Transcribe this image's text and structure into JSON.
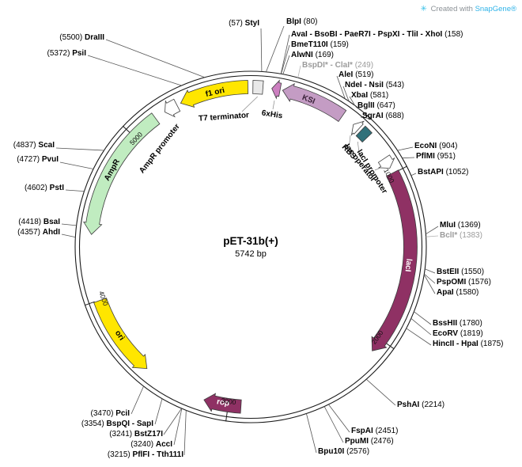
{
  "watermark": {
    "icon": "✳",
    "prefix": "Created with",
    "brand": "SnapGene®"
  },
  "plasmid": {
    "name": "pET-31b(+)",
    "size": "5742 bp"
  },
  "ticks": [
    "1000",
    "2000",
    "3000",
    "4000",
    "5000"
  ],
  "colors": {
    "backbone": "#1a1a1a",
    "leader": "#555555",
    "muted_site": "#9b9b9b",
    "watermark_brand": "#2fb3e8"
  },
  "features": {
    "f1_ori": {
      "label": "f1 ori",
      "color": "#ffe600"
    },
    "t7_terminator": {
      "label": "T7 terminator",
      "color": "#e9e9e9"
    },
    "his6": {
      "label": "6xHis",
      "color": "#cc7fc0"
    },
    "ksi": {
      "label": "KSI",
      "color": "#c49cc4"
    },
    "rbs": {
      "label": "RBS",
      "color": "#ffffff"
    },
    "lac_operator": {
      "label": "lac operator",
      "color": "#31717a"
    },
    "laci_promoter": {
      "label": "lacI promoter",
      "color": "#ffffff"
    },
    "laci": {
      "label": "lacI",
      "color": "#8f3164"
    },
    "rop": {
      "label": "rop",
      "color": "#8f3164"
    },
    "ori": {
      "label": "ori",
      "color": "#ffe600"
    },
    "ampr": {
      "label": "AmpR",
      "color": "#c0ecc0"
    },
    "ampr_promoter": {
      "label": "AmpR promoter",
      "color": "#ffffff"
    }
  },
  "sites": [
    {
      "name": "StyI",
      "pos": "(57)"
    },
    {
      "name": "BlpI",
      "pos": "(80)"
    },
    {
      "name": "AvaI - BsoBI - PaeR7I - PspXI - TliI - XhoI",
      "pos": "(158)"
    },
    {
      "name": "BmeT110I",
      "pos": "(159)"
    },
    {
      "name": "AlwNI",
      "pos": "(169)"
    },
    {
      "name": "BspDI* - ClaI*",
      "pos": "(249)",
      "muted": true
    },
    {
      "name": "AleI",
      "pos": "(519)"
    },
    {
      "name": "NdeI - NsiI",
      "pos": "(543)"
    },
    {
      "name": "XbaI",
      "pos": "(581)"
    },
    {
      "name": "BglII",
      "pos": "(647)"
    },
    {
      "name": "SgrAI",
      "pos": "(688)"
    },
    {
      "name": "EcoNI",
      "pos": "(904)"
    },
    {
      "name": "PflMI",
      "pos": "(951)"
    },
    {
      "name": "BstAPI",
      "pos": "(1052)"
    },
    {
      "name": "MluI",
      "pos": "(1369)"
    },
    {
      "name": "BclI*",
      "pos": "(1383)",
      "muted": true
    },
    {
      "name": "BstEII",
      "pos": "(1550)"
    },
    {
      "name": "PspOMI",
      "pos": "(1576)"
    },
    {
      "name": "ApaI",
      "pos": "(1580)"
    },
    {
      "name": "BssHII",
      "pos": "(1780)"
    },
    {
      "name": "EcoRV",
      "pos": "(1819)"
    },
    {
      "name": "HincII - HpaI",
      "pos": "(1875)"
    },
    {
      "name": "PshAI",
      "pos": "(2214)"
    },
    {
      "name": "FspAI",
      "pos": "(2451)"
    },
    {
      "name": "PpuMI",
      "pos": "(2476)"
    },
    {
      "name": "Bpu10I",
      "pos": "(2576)"
    },
    {
      "name": "PflFI - Tth111I",
      "pos": "(3215)"
    },
    {
      "name": "AccI",
      "pos": "(3240)"
    },
    {
      "name": "BstZ17I",
      "pos": "(3241)"
    },
    {
      "name": "BspQI - SapI",
      "pos": "(3354)"
    },
    {
      "name": "PciI",
      "pos": "(3470)"
    },
    {
      "name": "AhdI",
      "pos": "(4357)"
    },
    {
      "name": "BsaI",
      "pos": "(4418)"
    },
    {
      "name": "PstI",
      "pos": "(4602)"
    },
    {
      "name": "PvuI",
      "pos": "(4727)"
    },
    {
      "name": "ScaI",
      "pos": "(4837)"
    },
    {
      "name": "PsiI",
      "pos": "(5372)"
    },
    {
      "name": "DraIII",
      "pos": "(5500)"
    }
  ]
}
